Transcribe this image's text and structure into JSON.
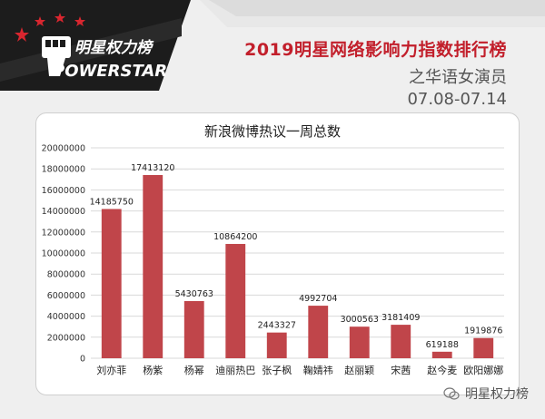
{
  "header": {
    "logo_text_cn": "明星权力榜",
    "logo_text_en": "POWERSTAR",
    "title_main": "2019明星网络影响力指数排行榜",
    "title_sub": "之华语女演员",
    "title_date": "07.08-07.14"
  },
  "watermark": {
    "text": "明星权力榜"
  },
  "colors": {
    "bar": "#c0454a",
    "accent": "#c21f2b",
    "logo_bg": "#1a1a1a"
  },
  "chart_data": {
    "type": "bar",
    "title": "新浪微博热议一周总数",
    "categories": [
      "刘亦菲",
      "杨紫",
      "杨幂",
      "迪丽热巴",
      "张子枫",
      "鞠婧祎",
      "赵丽颖",
      "宋茜",
      "赵今麦",
      "欧阳娜娜"
    ],
    "values": [
      14185750,
      17413120,
      5430763,
      10864200,
      2443327,
      4992704,
      3000563,
      3181409,
      619188,
      1919876
    ],
    "value_labels": [
      "14185750",
      "17413120",
      "5430763",
      "10864200",
      "2443327",
      "4992704",
      "3000563",
      "3181409",
      "619188",
      "1919876"
    ],
    "ylim": [
      0,
      20000000
    ],
    "yticks": [
      0,
      2000000,
      4000000,
      6000000,
      8000000,
      10000000,
      12000000,
      14000000,
      16000000,
      18000000,
      20000000
    ],
    "ytick_labels": [
      "0",
      "2000000",
      "4000000",
      "6000000",
      "8000000",
      "10000000",
      "12000000",
      "14000000",
      "16000000",
      "18000000",
      "20000000"
    ],
    "grid": true,
    "legend": "none"
  }
}
